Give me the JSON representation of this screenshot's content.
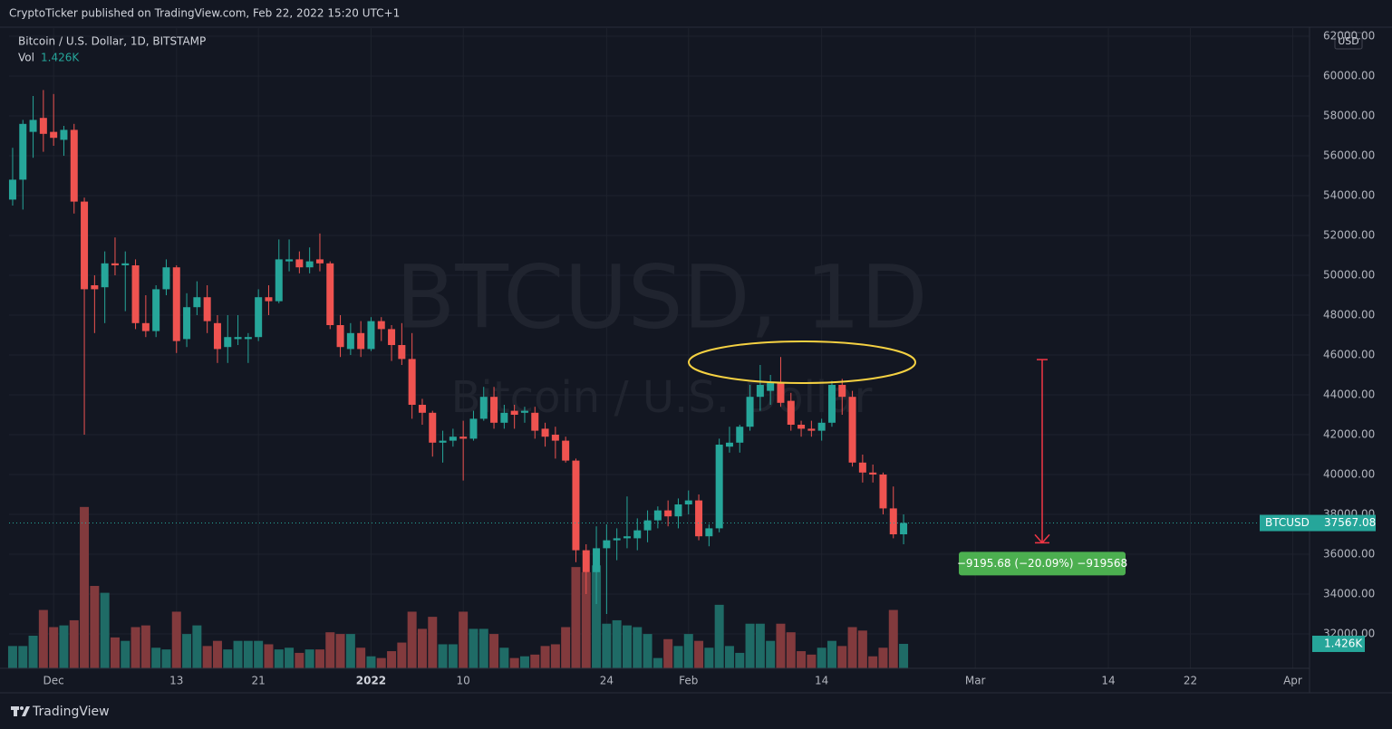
{
  "header": "CryptoTicker published on TradingView.com, Feb 22, 2022 15:20 UTC+1",
  "footer": "TradingView",
  "chart_data": {
    "type": "candlestick",
    "legend_title": "Bitcoin / U.S. Dollar, 1D, BITSTAMP",
    "watermark": "BTCUSD, 1D",
    "watermark_subtitle": "Bitcoin / U.S. Dollar",
    "currency": "USD",
    "price_tag_symbol": "BTCUSD",
    "up_color": "#26a69a",
    "down_color": "#ef5350",
    "volume_up_color": "#1f6b66",
    "volume_down_color": "#823a3d",
    "grid": true,
    "xlim": [
      -0.35,
      126.64
    ],
    "xticks": [
      {
        "value": 4,
        "label": "Dec"
      },
      {
        "value": 16,
        "label": "13"
      },
      {
        "value": 24,
        "label": "21"
      },
      {
        "value": 35,
        "label": "2022"
      },
      {
        "value": 44,
        "label": "10"
      },
      {
        "value": 58,
        "label": "24"
      },
      {
        "value": 66,
        "label": "Feb"
      },
      {
        "value": 79,
        "label": "14"
      },
      {
        "value": 94,
        "label": "Mar"
      },
      {
        "value": 107,
        "label": "14"
      },
      {
        "value": 115,
        "label": "22"
      },
      {
        "value": 125,
        "label": "Apr"
      }
    ],
    "ylim": [
      30273,
      62455
    ],
    "yticks": [
      {
        "value": 32000,
        "label": "32000.00"
      },
      {
        "value": 34000,
        "label": "34000.00"
      },
      {
        "value": 36000,
        "label": "36000.00"
      },
      {
        "value": 38000,
        "label": "38000.00"
      },
      {
        "value": 40000,
        "label": "40000.00"
      },
      {
        "value": 42000,
        "label": "42000.00"
      },
      {
        "value": 44000,
        "label": "44000.00"
      },
      {
        "value": 46000,
        "label": "46000.00"
      },
      {
        "value": 48000,
        "label": "48000.00"
      },
      {
        "value": 50000,
        "label": "50000.00"
      },
      {
        "value": 52000,
        "label": "52000.00"
      },
      {
        "value": 54000,
        "label": "54000.00"
      },
      {
        "value": 56000,
        "label": "56000.00"
      },
      {
        "value": 58000,
        "label": "58000.00"
      },
      {
        "value": 60000,
        "label": "60000.00"
      },
      {
        "value": 62000,
        "label": "62000.00"
      }
    ],
    "open": [
      53800,
      54800,
      57200,
      57900,
      57200,
      56800,
      57300,
      53700,
      49500,
      49400,
      50600,
      50500,
      50500,
      47600,
      47200,
      49300,
      50400,
      46800,
      48400,
      48900,
      47600,
      46400,
      46800,
      46800,
      46900,
      48900,
      48700,
      50700,
      50800,
      50400,
      50800,
      50600,
      47500,
      46300,
      47100,
      46300,
      47700,
      47300,
      46500,
      45800,
      43500,
      43100,
      41600,
      41700,
      41900,
      41800,
      42800,
      43900,
      42600,
      43200,
      43100,
      43100,
      42300,
      42000,
      41700,
      40700,
      36200,
      35100,
      36300,
      36700,
      36800,
      36800,
      37200,
      37700,
      38200,
      37900,
      38500,
      38700,
      36900,
      37300,
      41400,
      41600,
      42400,
      43900,
      44200,
      44600,
      43700,
      42500,
      42300,
      42200,
      42600,
      44500,
      43900,
      40600,
      40100,
      40000,
      38300,
      37000
    ],
    "high": [
      56400,
      57800,
      59000,
      59300,
      59100,
      57500,
      57600,
      53900,
      50000,
      51200,
      51900,
      51200,
      50800,
      49000,
      49500,
      50800,
      50500,
      49100,
      49700,
      49500,
      48000,
      48000,
      48000,
      47100,
      49300,
      49500,
      51800,
      51800,
      51200,
      51400,
      52100,
      50700,
      48000,
      47600,
      47700,
      47900,
      47900,
      47500,
      47600,
      47100,
      43800,
      43200,
      42200,
      42300,
      42700,
      43200,
      44400,
      44400,
      43500,
      43500,
      43400,
      43400,
      42600,
      42400,
      41900,
      40800,
      36500,
      37400,
      37500,
      37300,
      38900,
      37800,
      38200,
      38400,
      38700,
      38800,
      39200,
      39000,
      37500,
      41800,
      42400,
      42500,
      44500,
      45500,
      45000,
      45900,
      44100,
      42700,
      42700,
      42800,
      44700,
      44800,
      44200,
      41000,
      40500,
      40100,
      39400,
      38000
    ],
    "low": [
      53500,
      53300,
      55900,
      56200,
      56500,
      56000,
      53100,
      42000,
      47100,
      47600,
      50000,
      48200,
      47300,
      46900,
      46900,
      49000,
      46100,
      46400,
      48000,
      47100,
      45600,
      45600,
      46500,
      45600,
      46700,
      48000,
      48600,
      50200,
      50100,
      50100,
      50200,
      47300,
      45900,
      46000,
      45900,
      46200,
      46700,
      45700,
      45500,
      42800,
      42500,
      40900,
      40600,
      41400,
      39700,
      41700,
      42700,
      42300,
      42300,
      42300,
      42600,
      41800,
      41400,
      40800,
      40600,
      35600,
      34000,
      33500,
      33000,
      35700,
      36300,
      36200,
      36600,
      37300,
      37400,
      37300,
      38000,
      36700,
      36400,
      37100,
      41100,
      41100,
      42200,
      43200,
      43500,
      43400,
      42200,
      41900,
      41900,
      41700,
      42400,
      43000,
      40400,
      39600,
      39600,
      38000,
      36800,
      36500
    ],
    "close": [
      54800,
      57600,
      57800,
      57100,
      56900,
      57300,
      53700,
      49300,
      49300,
      50600,
      50500,
      50600,
      47600,
      47200,
      49300,
      50400,
      46700,
      48400,
      48900,
      47700,
      46300,
      46900,
      46900,
      46900,
      48900,
      48700,
      50800,
      50800,
      50400,
      50700,
      50600,
      47500,
      46400,
      47100,
      46300,
      47700,
      47300,
      46500,
      45800,
      43500,
      43100,
      41600,
      41700,
      41900,
      41800,
      42800,
      43900,
      42600,
      43100,
      43000,
      43200,
      42200,
      41900,
      41700,
      40700,
      36200,
      35100,
      36300,
      36700,
      36800,
      36900,
      37200,
      37700,
      38200,
      37900,
      38500,
      38700,
      36900,
      37300,
      41500,
      41600,
      42400,
      43900,
      44500,
      44600,
      43600,
      42500,
      42300,
      42200,
      42600,
      44500,
      43900,
      40600,
      40100,
      40000,
      38300,
      37000,
      37567.08
    ],
    "volume": {
      "name": "Vol",
      "ylim": [
        0,
        13.4
      ],
      "values": [
        1.3,
        1.3,
        1.9,
        3.4,
        2.4,
        2.5,
        2.8,
        9.4,
        4.8,
        4.4,
        1.8,
        1.6,
        2.4,
        2.5,
        1.2,
        1.1,
        3.3,
        2.0,
        2.5,
        1.3,
        1.6,
        1.1,
        1.6,
        1.6,
        1.6,
        1.4,
        1.1,
        1.2,
        0.9,
        1.1,
        1.1,
        2.1,
        2.0,
        2.0,
        1.2,
        0.7,
        0.6,
        1.0,
        1.5,
        3.3,
        2.3,
        3.0,
        1.4,
        1.4,
        3.3,
        2.3,
        2.3,
        2.0,
        1.2,
        0.6,
        0.7,
        0.8,
        1.3,
        1.4,
        2.4,
        5.9,
        5.6,
        6.0,
        2.6,
        2.8,
        2.5,
        2.4,
        2.0,
        0.6,
        1.7,
        1.3,
        2.0,
        1.6,
        1.2,
        3.7,
        1.3,
        0.9,
        2.6,
        2.6,
        1.6,
        2.6,
        2.1,
        1.0,
        0.8,
        1.2,
        1.6,
        1.3,
        2.4,
        2.2,
        0.7,
        1.2,
        3.4,
        1.426
      ],
      "value_labels": [
        null,
        null,
        null,
        null,
        null,
        null,
        null,
        null,
        null,
        null,
        null,
        null,
        null,
        null,
        null,
        null,
        null,
        null,
        null,
        null,
        null,
        null,
        null,
        null,
        null,
        null,
        null,
        null,
        null,
        null,
        null,
        null,
        null,
        null,
        null,
        null,
        null,
        null,
        null,
        null,
        null,
        null,
        null,
        null,
        null,
        null,
        null,
        null,
        null,
        null,
        null,
        null,
        null,
        null,
        null,
        null,
        null,
        null,
        null,
        null,
        null,
        null,
        null,
        null,
        null,
        null,
        null,
        null,
        null,
        null,
        null,
        null,
        null,
        null,
        null,
        null,
        null,
        null,
        null,
        null,
        null,
        null,
        null,
        null,
        null,
        null,
        null,
        "1.426K"
      ]
    },
    "measure": {
      "from": 45770,
      "to": 36574.32,
      "label": "−9195.68 (−20.09%) −919568",
      "color": "#f23645",
      "label_color": "#4caf50"
    },
    "highlight_color": "#f5d142"
  }
}
